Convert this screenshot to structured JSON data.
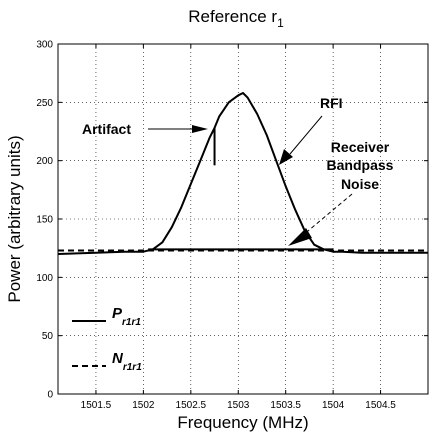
{
  "chart_data": {
    "type": "line",
    "title": "Reference r",
    "title_subscript": "1",
    "xlabel": "Frequency (MHz)",
    "ylabel": "Power (arbitrary units)",
    "xlim": [
      1501.1,
      1505.0
    ],
    "ylim": [
      0,
      300
    ],
    "xticks": [
      1501.5,
      1502,
      1502.5,
      1503,
      1503.5,
      1504,
      1504.5
    ],
    "xtick_labels": [
      "1501.5",
      "1502",
      "1502.5",
      "1503",
      "1503.5",
      "1504",
      "1504.5"
    ],
    "yticks": [
      0,
      50,
      100,
      150,
      200,
      250,
      300
    ],
    "ytick_labels": [
      "0",
      "50",
      "100",
      "150",
      "200",
      "250",
      "300"
    ],
    "grid": true,
    "legend_position": "bottom-left",
    "series": [
      {
        "name": "P",
        "subscript": "r1r1",
        "style": "solid",
        "x": [
          1501.1,
          1501.5,
          1501.8,
          1502.0,
          1502.1,
          1502.2,
          1502.3,
          1502.4,
          1502.5,
          1502.6,
          1502.7,
          1502.75,
          1502.8,
          1502.9,
          1503.0,
          1503.05,
          1503.1,
          1503.2,
          1503.3,
          1503.4,
          1503.5,
          1503.6,
          1503.7,
          1503.8,
          1503.9,
          1504.0,
          1504.1,
          1504.3,
          1504.6,
          1505.0
        ],
        "y": [
          120,
          121,
          122,
          122,
          124,
          130,
          143,
          160,
          180,
          200,
          220,
          228,
          238,
          250,
          256,
          258,
          254,
          240,
          222,
          200,
          178,
          158,
          140,
          128,
          124,
          122,
          122,
          121,
          121,
          121
        ]
      },
      {
        "name": "N",
        "subscript": "r1r1",
        "style": "dashed",
        "x": [
          1501.1,
          1505.0
        ],
        "y": [
          123,
          123
        ]
      }
    ],
    "annotations": [
      {
        "text": "Artifact",
        "x": 1502.7,
        "y": 240
      },
      {
        "text": "RFI",
        "x": 1503.8,
        "y": 246
      },
      {
        "text": "Receiver",
        "x": 1504.1,
        "y": 212
      },
      {
        "text": "Bandpass",
        "x": 1504.1,
        "y": 194
      },
      {
        "text": "Noise",
        "x": 1504.1,
        "y": 176
      }
    ]
  }
}
